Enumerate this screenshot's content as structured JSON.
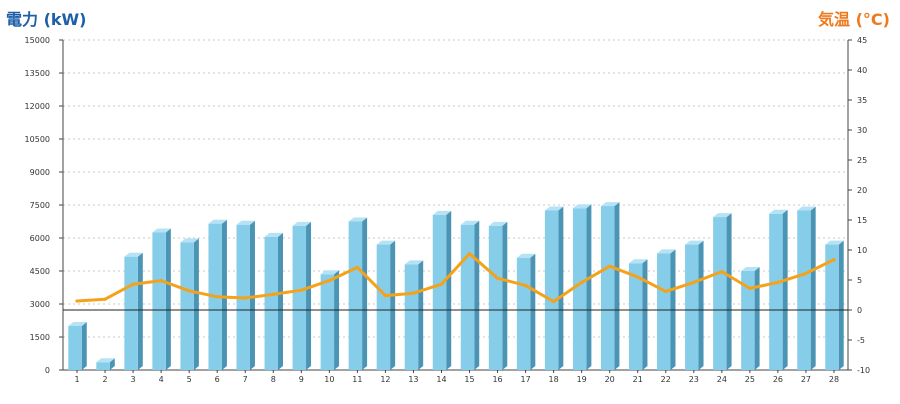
{
  "chart_data": {
    "type": "bar",
    "left_axis_title": "電力 (kW)",
    "right_axis_title": "気温 (°C)",
    "categories": [
      "1",
      "2",
      "3",
      "4",
      "5",
      "6",
      "7",
      "8",
      "9",
      "10",
      "11",
      "12",
      "13",
      "14",
      "15",
      "16",
      "17",
      "18",
      "19",
      "20",
      "21",
      "22",
      "23",
      "24",
      "25",
      "26",
      "27",
      "28"
    ],
    "series": [
      {
        "type": "bar",
        "axis": "left",
        "values": [
          2000,
          350,
          5150,
          6250,
          5800,
          6650,
          6600,
          6050,
          6550,
          4350,
          6750,
          5700,
          4800,
          7050,
          6600,
          6550,
          5100,
          7250,
          7350,
          7450,
          4850,
          5300,
          5700,
          6950,
          4500,
          7100,
          7250,
          5700
        ]
      },
      {
        "type": "line",
        "axis": "right",
        "values": [
          1.5,
          1.8,
          4.3,
          4.9,
          3.2,
          2.2,
          2.0,
          2.6,
          3.3,
          4.9,
          7.1,
          2.4,
          2.8,
          4.3,
          9.4,
          5.3,
          4.1,
          1.4,
          4.6,
          7.3,
          5.5,
          3.1,
          4.6,
          6.4,
          3.6,
          4.6,
          6.1,
          8.4
        ]
      }
    ],
    "y_left": {
      "min": 0,
      "max": 15000,
      "ticks": [
        0,
        1500,
        3000,
        4500,
        6000,
        7500,
        9000,
        10500,
        12000,
        13500,
        15000
      ]
    },
    "y_right": {
      "min": -10,
      "max": 45,
      "ticks": [
        -10,
        -5,
        0,
        5,
        10,
        15,
        20,
        25,
        30,
        35,
        40,
        45
      ]
    },
    "grid": true,
    "colors": {
      "bar_front": "#86cdea",
      "bar_side": "#4b94b4",
      "bar_top": "#b5e3f5",
      "line": "#f5a21b",
      "left_title": "#1f5fa8",
      "right_title": "#ee7a1e",
      "grid": "#c8c8c8"
    }
  }
}
